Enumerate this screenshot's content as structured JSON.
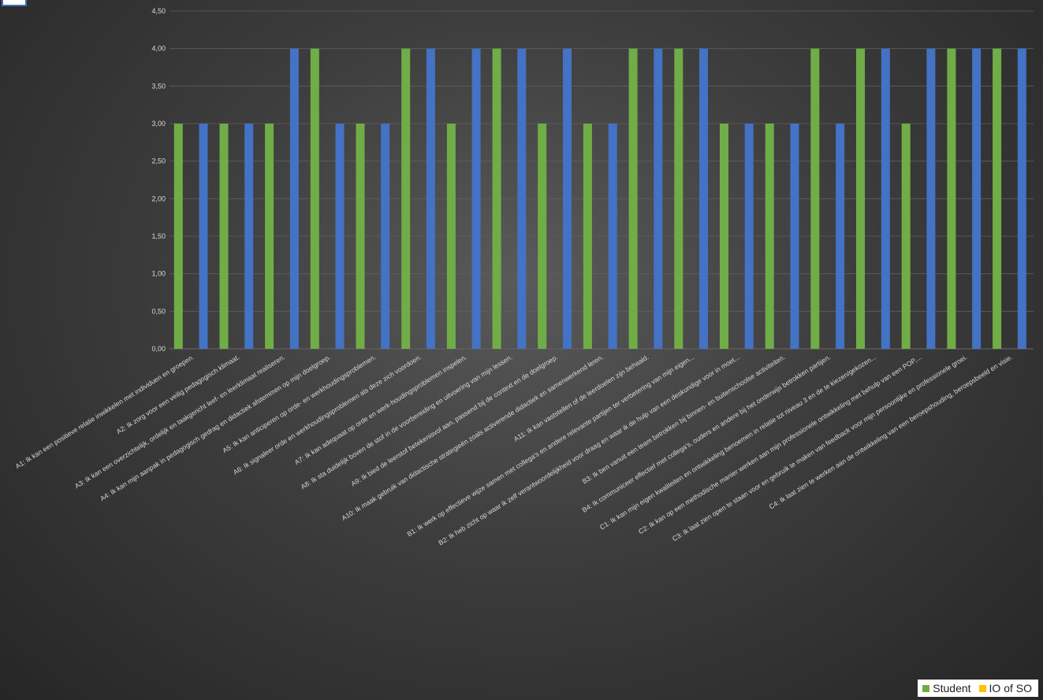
{
  "colors": {
    "student": "#70ad47",
    "io": "#4472c4",
    "io_legend": "#ffc000",
    "grid": "#5f5f5f",
    "axis_text": "#d9d9d9"
  },
  "legend": {
    "student_label": "Student",
    "io_label": "IO of SO"
  },
  "chart_data": {
    "type": "bar",
    "ylim": [
      0,
      4.5
    ],
    "y_ticks": [
      "0,00",
      "0,50",
      "1,00",
      "1,50",
      "2,00",
      "2,50",
      "3,00",
      "3,50",
      "4,00",
      "4,50"
    ],
    "grid": true,
    "legend_position": "bottom-right",
    "categories": [
      "A1: Ik kan een positieve relatie inwikkelen met individuen en groepen.",
      "A2: Ik zorg voor een veilig pedagogisch klimaat.",
      "A3: Ik kan een overzichtelijk, ordelijk en taakgericht leef- en leerklimaat realiseren.",
      "A4: Ik kan mijn aanpak in pedagogisch gedrag en didactiek afstemmen op mijn doelgroep.",
      "A5: Ik kan anticiperen op orde- en werkhoudingsproblemen.",
      "A6: Ik signaleer orde en werkhoudingsproblemen als deze zich voordoen.",
      "A7: Ik kan adequaat op orde en werk-houdingsproblemen inspelen.",
      "A8: Ik sta duidelijk boven de stof in de voorbereiding en uitvoering van mijn lessen.",
      "A9: Ik bied de leerstof betekenisvol aan, passend bij de context en de doelgroep.",
      "A10: Ik maak gebruik van didactische strategieën zoals activerende didactiek en samenwerkend leren.",
      "A11: Ik kan vaststellen of de leerdoelen zijn behaald.",
      "B1: Ik werk op effectieve wijze samen met collega's en andere relevante partijen ter verbetering van mijn eigen...",
      "B2: Ik heb zicht op waar ik zelf verantwoordelijkheid voor draag en waar ik de hulp van een deskundige voor in moet...",
      "B3: Ik ben vanuit een team betrokken bij binnen- en buitenschoolse activiteiten.",
      "B4: Ik communiceer effectief met collega's, ouders en andere bij het onderwijs betrokken partijen.",
      "C1: Ik kan mijn eigen kwaliteiten en ontwikkeling benoemen in relatie tot niveau 3 en de te kiezen/gekozen...",
      "C2: Ik kan op een methodische manier werken aan mijn professionele ontwikkeling met behulp van een POP,...",
      "C3: Ik laat zien open te staan voor en gebruik te maken van feedback voor mijn persoonlijke en professionele groei.",
      "C4: Ik laat zien te werken aan de ontwikkeling van een beroepshouding, beroepsbeeld en visie."
    ],
    "series": [
      {
        "name": "Student",
        "values": [
          3,
          3,
          3,
          4,
          3,
          4,
          3,
          4,
          3,
          3,
          4,
          4,
          3,
          3,
          4,
          4,
          3,
          4,
          4
        ]
      },
      {
        "name": "IO of SO",
        "values": [
          3,
          3,
          4,
          3,
          3,
          4,
          4,
          4,
          4,
          3,
          4,
          4,
          3,
          3,
          3,
          4,
          4,
          4,
          4
        ]
      }
    ]
  }
}
